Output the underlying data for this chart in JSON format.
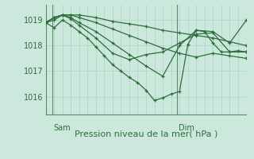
{
  "bg_color": "#cce8dc",
  "grid_color": "#aad4c4",
  "line_color": "#2d6e3a",
  "border_color": "#5a8a6a",
  "ylabel_ticks": [
    1016,
    1017,
    1018,
    1019
  ],
  "xlim": [
    0,
    48
  ],
  "ylim": [
    1015.3,
    1019.6
  ],
  "xlabel": "Pression niveau de la mer( hPa )",
  "xlabel_fontsize": 8,
  "tick_fontsize": 7,
  "sam_x": 1.5,
  "dim_x": 31.5,
  "series": [
    [
      0,
      1018.9,
      2,
      1019.1,
      4,
      1019.2,
      6,
      1019.2,
      8,
      1019.2,
      12,
      1019.1,
      16,
      1018.95,
      20,
      1018.85,
      24,
      1018.75,
      28,
      1018.6,
      32,
      1018.5,
      36,
      1018.4,
      40,
      1018.3,
      44,
      1018.15,
      48,
      1018.0
    ],
    [
      0,
      1018.9,
      2,
      1019.1,
      4,
      1019.2,
      6,
      1019.2,
      8,
      1019.1,
      12,
      1018.9,
      16,
      1018.65,
      20,
      1018.4,
      24,
      1018.15,
      28,
      1017.9,
      32,
      1017.7,
      36,
      1017.55,
      40,
      1017.7,
      44,
      1017.6,
      48,
      1017.5
    ],
    [
      0,
      1018.9,
      2,
      1019.1,
      4,
      1019.2,
      6,
      1019.1,
      8,
      1018.9,
      12,
      1018.55,
      16,
      1018.1,
      20,
      1017.65,
      24,
      1017.2,
      28,
      1016.8,
      32,
      1018.0,
      36,
      1018.6,
      40,
      1018.55,
      44,
      1018.1,
      48,
      1019.0
    ],
    [
      0,
      1018.9,
      2,
      1019.0,
      4,
      1019.2,
      6,
      1019.05,
      8,
      1018.8,
      12,
      1018.3,
      16,
      1017.7,
      20,
      1017.45,
      24,
      1017.65,
      28,
      1017.75,
      32,
      1018.1,
      36,
      1018.45,
      40,
      1018.5,
      44,
      1017.75,
      48,
      1017.75
    ],
    [
      0,
      1018.9,
      2,
      1018.7,
      4,
      1019.0,
      6,
      1018.8,
      8,
      1018.55,
      10,
      1018.3,
      12,
      1017.95,
      14,
      1017.6,
      16,
      1017.25,
      18,
      1017.0,
      20,
      1016.75,
      22,
      1016.55,
      24,
      1016.25,
      26,
      1015.85,
      28,
      1015.95,
      30,
      1016.1,
      32,
      1016.2,
      34,
      1018.05,
      36,
      1018.6,
      38,
      1018.55,
      40,
      1018.1,
      42,
      1017.75,
      44,
      1017.75,
      46,
      1017.8,
      48,
      1017.75
    ]
  ]
}
